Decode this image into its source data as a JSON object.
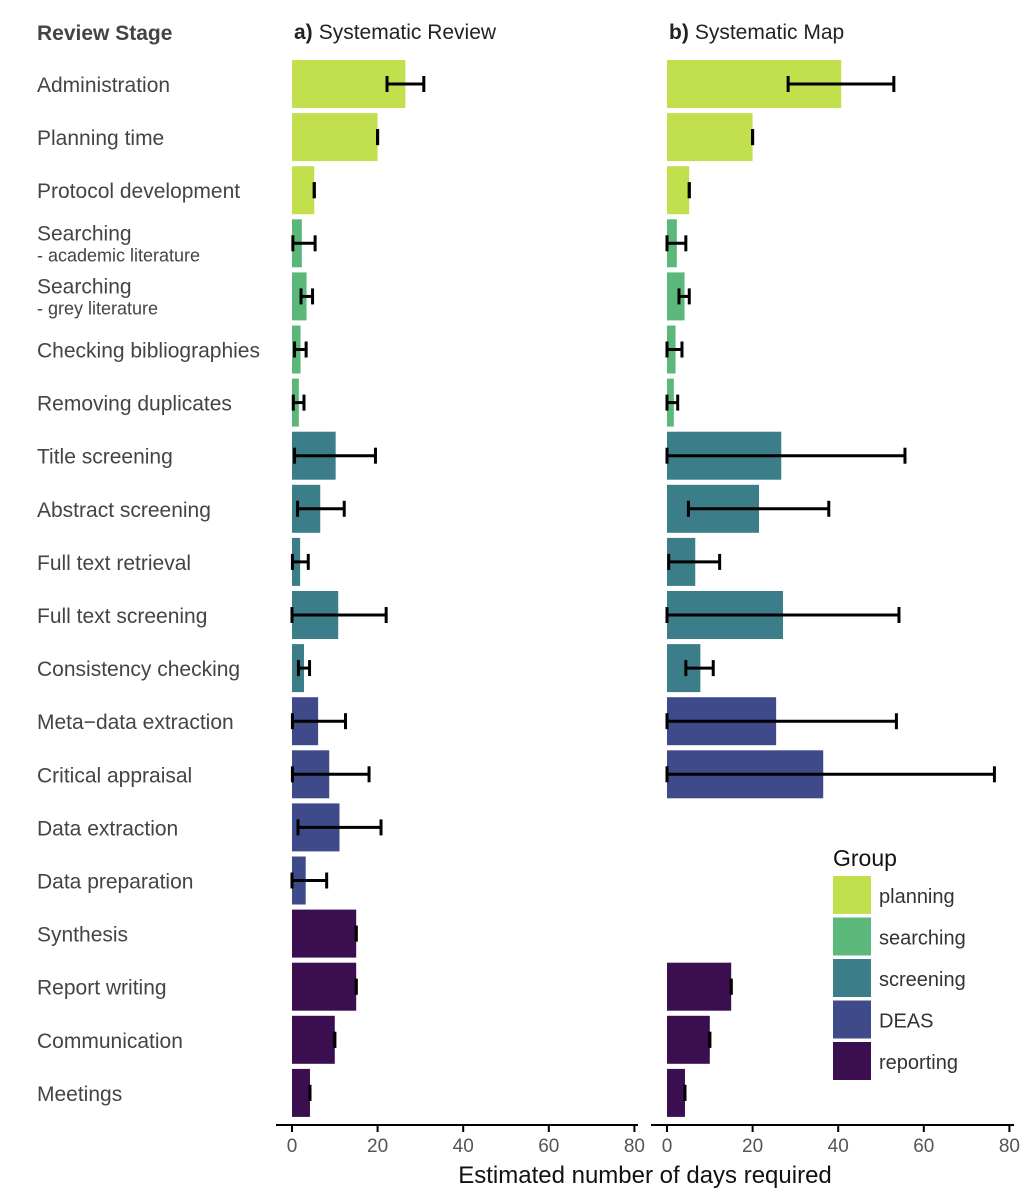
{
  "column_header": "Review Stage",
  "colors": {
    "planning": "#c2df4e",
    "searching": "#5cb87a",
    "screening": "#3b7e8a",
    "DEAS": "#3e4a89",
    "reporting": "#3b0e4f"
  },
  "chart_data": {
    "type": "bar",
    "orientation": "horizontal",
    "xlabel": "Estimated number of days required",
    "xlim": [
      0,
      80
    ],
    "xticks": [
      0,
      20,
      40,
      60,
      80
    ],
    "categories": [
      {
        "label": "Administration",
        "group": "planning"
      },
      {
        "label": "Planning time",
        "group": "planning"
      },
      {
        "label": "Protocol development",
        "group": "planning"
      },
      {
        "label": "Searching",
        "sublabel": "- academic literature",
        "group": "searching"
      },
      {
        "label": "Searching",
        "sublabel": "- grey literature",
        "group": "searching"
      },
      {
        "label": "Checking bibliographies",
        "group": "searching"
      },
      {
        "label": "Removing duplicates",
        "group": "searching"
      },
      {
        "label": "Title screening",
        "group": "screening"
      },
      {
        "label": "Abstract screening",
        "group": "screening"
      },
      {
        "label": "Full text retrieval",
        "group": "screening"
      },
      {
        "label": "Full text screening",
        "group": "screening"
      },
      {
        "label": "Consistency checking",
        "group": "screening"
      },
      {
        "label": "Meta−data extraction",
        "group": "DEAS"
      },
      {
        "label": "Critical appraisal",
        "group": "DEAS"
      },
      {
        "label": "Data extraction",
        "group": "DEAS"
      },
      {
        "label": "Data preparation",
        "group": "DEAS"
      },
      {
        "label": "Synthesis",
        "group": "reporting"
      },
      {
        "label": "Report writing",
        "group": "reporting"
      },
      {
        "label": "Communication",
        "group": "reporting"
      },
      {
        "label": "Meetings",
        "group": "reporting"
      }
    ],
    "panels": [
      {
        "tag": "a)",
        "title": "Systematic Review",
        "values": [
          26.5,
          20,
          5.2,
          2.3,
          3.4,
          2,
          1.6,
          10.2,
          6.6,
          1.9,
          10.8,
          2.8,
          6.1,
          8.7,
          11.1,
          3.2,
          15,
          15,
          10,
          4.2
        ],
        "errors": [
          [
            22.2,
            30.8
          ],
          [
            20,
            20
          ],
          [
            5.2,
            5.2
          ],
          [
            0.2,
            5.4
          ],
          [
            2.1,
            4.8
          ],
          [
            0.6,
            3.3
          ],
          [
            0.3,
            2.8
          ],
          [
            0.6,
            19.5
          ],
          [
            1.3,
            12.2
          ],
          [
            0.1,
            3.8
          ],
          [
            0,
            22
          ],
          [
            1.5,
            4.1
          ],
          [
            0.1,
            12.5
          ],
          [
            0.1,
            18
          ],
          [
            1.4,
            20.8
          ],
          [
            0,
            8.1
          ],
          [
            15,
            15
          ],
          [
            15,
            15
          ],
          [
            10,
            10
          ],
          [
            4.2,
            4.2
          ]
        ]
      },
      {
        "tag": "b)",
        "title": "Systematic Map",
        "values": [
          40.7,
          20,
          5.2,
          2.3,
          4.1,
          2,
          1.6,
          26.7,
          21.5,
          6.6,
          27.1,
          7.8,
          25.5,
          36.5,
          null,
          null,
          null,
          15,
          10,
          4.2
        ],
        "errors": [
          [
            28.3,
            53
          ],
          [
            20,
            20
          ],
          [
            5.2,
            5.2
          ],
          [
            0,
            4.4
          ],
          [
            2.8,
            5.2
          ],
          [
            0,
            3.5
          ],
          [
            0,
            2.5
          ],
          [
            0,
            55.6
          ],
          [
            5,
            37.8
          ],
          [
            0.4,
            12.3
          ],
          [
            0,
            54.2
          ],
          [
            4.4,
            10.8
          ],
          [
            0,
            53.6
          ],
          [
            0,
            76.5
          ],
          null,
          null,
          null,
          [
            15,
            15
          ],
          [
            10,
            10
          ],
          [
            4.2,
            4.2
          ]
        ]
      }
    ]
  },
  "legend": {
    "title": "Group",
    "items": [
      {
        "key": "planning",
        "label": "planning"
      },
      {
        "key": "searching",
        "label": "searching"
      },
      {
        "key": "screening",
        "label": "screening"
      },
      {
        "key": "DEAS",
        "label": "DEAS"
      },
      {
        "key": "reporting",
        "label": "reporting"
      }
    ]
  }
}
